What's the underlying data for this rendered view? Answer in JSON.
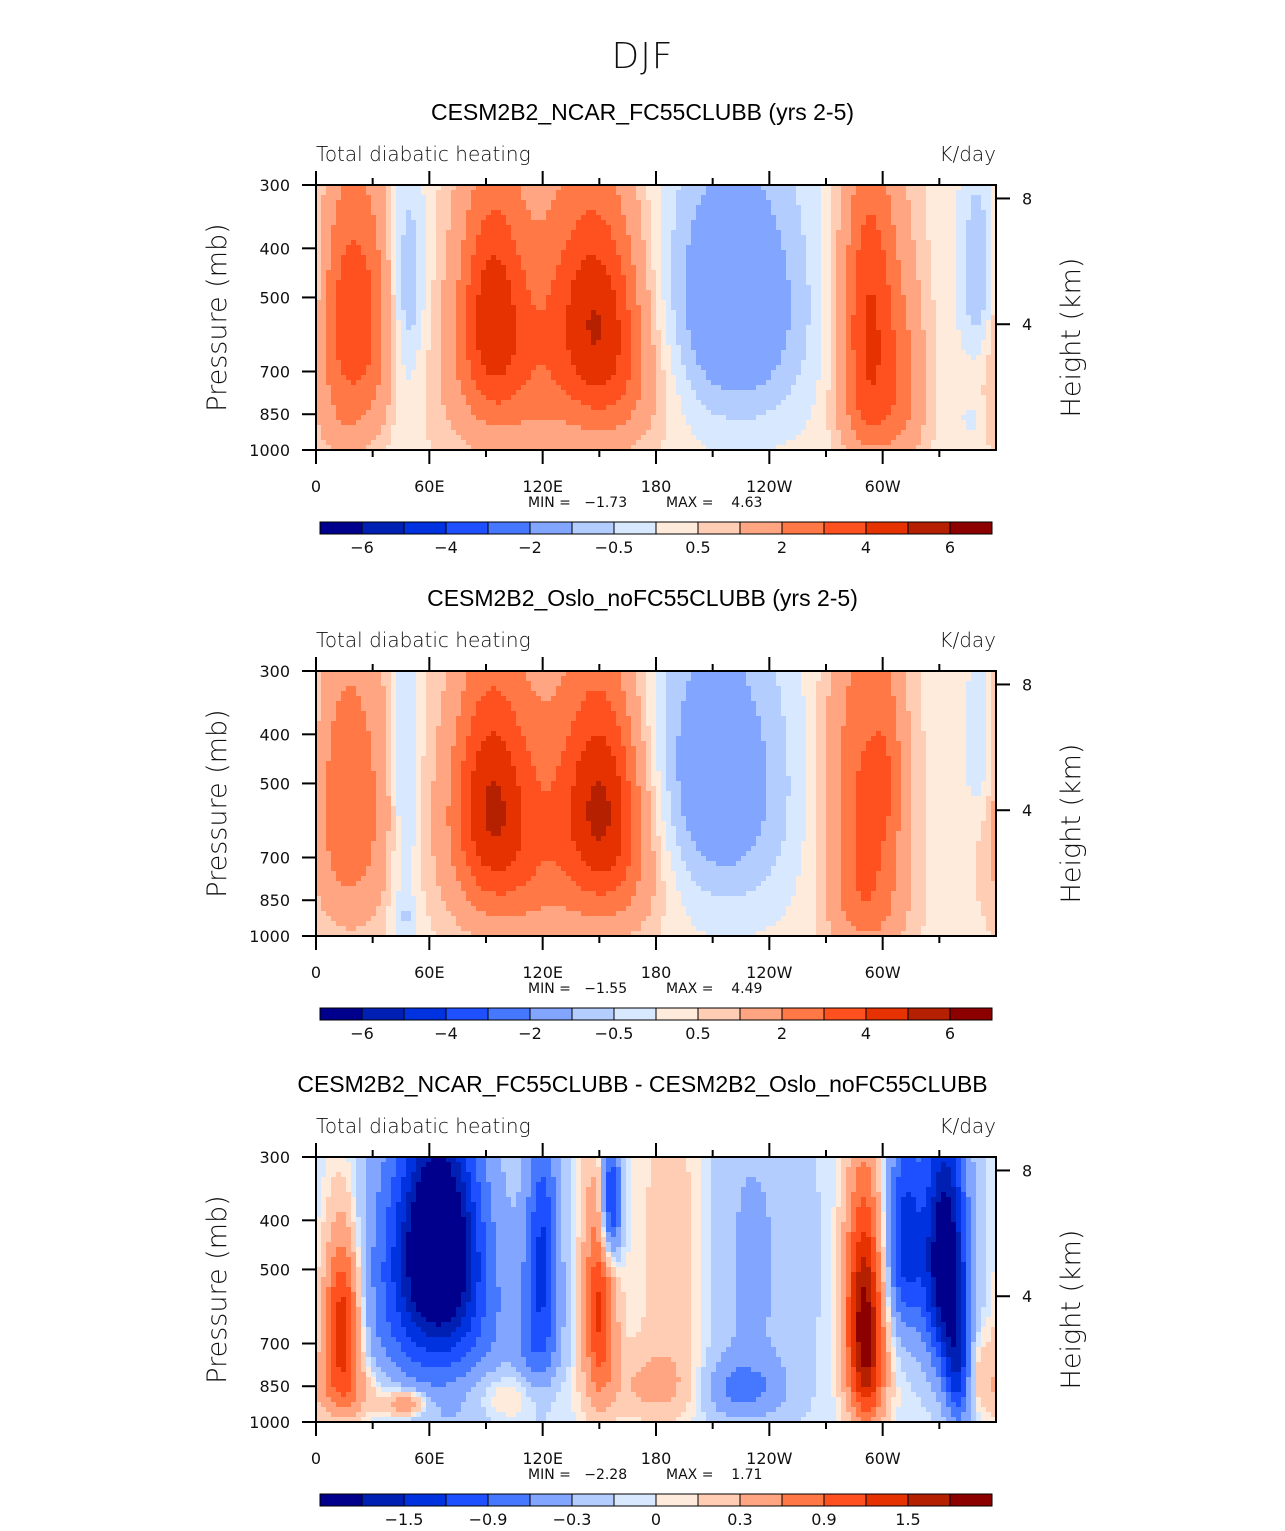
{
  "figure": {
    "suptitle": "DJF"
  },
  "chart_data": [
    {
      "type": "heatmap",
      "subtype": "filled-contour",
      "title": "CESM2B2_NCAR_FC55CLUBB (yrs 2-5)",
      "left_string": "Total diabatic heating",
      "right_string": "K/day",
      "ylabel": "Pressure (mb)",
      "ylabel_right": "Height (km)",
      "xticks": [
        "0",
        "60E",
        "120E",
        "180",
        "120W",
        "60W"
      ],
      "xtick_lon": [
        0,
        60,
        120,
        180,
        240,
        300
      ],
      "xlim_lon": [
        0,
        360
      ],
      "yticks": [
        "300",
        "400",
        "500",
        "700",
        "850",
        "1000"
      ],
      "ytick_p": [
        300,
        400,
        500,
        700,
        850,
        1000
      ],
      "ylim_p": [
        1000,
        300
      ],
      "yticks_right": [
        "8",
        "4"
      ],
      "ytick_right_km": [
        8,
        4
      ],
      "min_label": "MIN =   −1.73",
      "max_label": "MAX =    4.63",
      "min": -1.73,
      "max": 4.63,
      "colorbar": {
        "levels": [
          -6,
          -5,
          -4,
          -3,
          -2,
          -1,
          -0.5,
          0,
          0.5,
          1,
          2,
          3,
          4,
          5,
          6
        ],
        "labels": [
          "−6",
          "−4",
          "−2",
          "−0.5",
          "0.5",
          "2",
          "4",
          "6"
        ],
        "label_boundary_index": [
          0,
          2,
          4,
          6,
          8,
          10,
          12,
          14
        ]
      },
      "features": [
        {
          "lon": 20,
          "p": 560,
          "amp": 3.6,
          "wlon": 14,
          "wp": 230
        },
        {
          "lon": 13,
          "p": 900,
          "amp": 0.5,
          "wlon": 10,
          "wp": 80
        },
        {
          "lon": 48,
          "p": 470,
          "amp": -1.5,
          "wlon": 7,
          "wp": 170
        },
        {
          "lon": 47,
          "p": 850,
          "amp": -0.4,
          "wlon": 6,
          "wp": 200
        },
        {
          "lon": 93,
          "p": 520,
          "amp": 3.6,
          "wlon": 13,
          "wp": 200
        },
        {
          "lon": 100,
          "p": 750,
          "amp": 1.3,
          "wlon": 25,
          "wp": 200
        },
        {
          "lon": 150,
          "p": 530,
          "amp": 3.8,
          "wlon": 17,
          "wp": 190
        },
        {
          "lon": 160,
          "p": 780,
          "amp": 1.4,
          "wlon": 18,
          "wp": 160
        },
        {
          "lon": 127,
          "p": 540,
          "amp": 1.0,
          "wlon": 20,
          "wp": 300
        },
        {
          "lon": 225,
          "p": 540,
          "amp": -1.65,
          "wlon": 28,
          "wp": 260
        },
        {
          "lon": 210,
          "p": 470,
          "amp": -0.6,
          "wlon": 30,
          "wp": 200
        },
        {
          "lon": 293,
          "p": 520,
          "amp": 3.7,
          "wlon": 11,
          "wp": 230
        },
        {
          "lon": 295,
          "p": 850,
          "amp": 1.8,
          "wlon": 12,
          "wp": 150
        },
        {
          "lon": 313,
          "p": 720,
          "amp": 1.2,
          "wlon": 8,
          "wp": 230
        },
        {
          "lon": 352,
          "p": 450,
          "amp": -1.6,
          "wlon": 8,
          "wp": 150
        },
        {
          "lon": 348,
          "p": 870,
          "amp": -0.5,
          "wlon": 6,
          "wp": 50
        }
      ],
      "background": 0.3
    },
    {
      "type": "heatmap",
      "subtype": "filled-contour",
      "title": "CESM2B2_Oslo_noFC55CLUBB (yrs 2-5)",
      "left_string": "Total diabatic heating",
      "right_string": "K/day",
      "ylabel": "Pressure (mb)",
      "ylabel_right": "Height (km)",
      "xticks": [
        "0",
        "60E",
        "120E",
        "180",
        "120W",
        "60W"
      ],
      "xtick_lon": [
        0,
        60,
        120,
        180,
        240,
        300
      ],
      "xlim_lon": [
        0,
        360
      ],
      "yticks": [
        "300",
        "400",
        "500",
        "700",
        "850",
        "1000"
      ],
      "ytick_p": [
        300,
        400,
        500,
        700,
        850,
        1000
      ],
      "ylim_p": [
        1000,
        300
      ],
      "yticks_right": [
        "8",
        "4"
      ],
      "ytick_right_km": [
        8,
        4
      ],
      "min_label": "MIN =   −1.55",
      "max_label": "MAX =    4.49",
      "min": -1.55,
      "max": 4.49,
      "colorbar": {
        "levels": [
          -6,
          -5,
          -4,
          -3,
          -2,
          -1,
          -0.5,
          0,
          0.5,
          1,
          2,
          3,
          4,
          5,
          6
        ],
        "labels": [
          "−6",
          "−4",
          "−2",
          "−0.5",
          "0.5",
          "2",
          "4",
          "6"
        ],
        "label_boundary_index": [
          0,
          2,
          4,
          6,
          8,
          10,
          12,
          14
        ]
      },
      "features": [
        {
          "lon": 18,
          "p": 560,
          "amp": 2.7,
          "wlon": 14,
          "wp": 250
        },
        {
          "lon": 47,
          "p": 520,
          "amp": -1.1,
          "wlon": 5,
          "wp": 300
        },
        {
          "lon": 47,
          "p": 920,
          "amp": -0.6,
          "wlon": 5,
          "wp": 60
        },
        {
          "lon": 92,
          "p": 520,
          "amp": 3.8,
          "wlon": 15,
          "wp": 200
        },
        {
          "lon": 100,
          "p": 740,
          "amp": 1.5,
          "wlon": 22,
          "wp": 200
        },
        {
          "lon": 152,
          "p": 520,
          "amp": 3.8,
          "wlon": 15,
          "wp": 190
        },
        {
          "lon": 160,
          "p": 760,
          "amp": 1.5,
          "wlon": 18,
          "wp": 180
        },
        {
          "lon": 128,
          "p": 560,
          "amp": 1.2,
          "wlon": 20,
          "wp": 300
        },
        {
          "lon": 218,
          "p": 520,
          "amp": -1.5,
          "wlon": 28,
          "wp": 270
        },
        {
          "lon": 200,
          "p": 450,
          "amp": -0.6,
          "wlon": 25,
          "wp": 200
        },
        {
          "lon": 290,
          "p": 520,
          "amp": 2.8,
          "wlon": 14,
          "wp": 260
        },
        {
          "lon": 303,
          "p": 480,
          "amp": 1.0,
          "wlon": 6,
          "wp": 150
        },
        {
          "lon": 292,
          "p": 880,
          "amp": 1.5,
          "wlon": 14,
          "wp": 150
        },
        {
          "lon": 352,
          "p": 420,
          "amp": -1.1,
          "wlon": 6,
          "wp": 120
        }
      ],
      "background": 0.3
    },
    {
      "type": "heatmap",
      "subtype": "filled-contour",
      "title": "CESM2B2_NCAR_FC55CLUBB - CESM2B2_Oslo_noFC55CLUBB",
      "left_string": "Total diabatic heating",
      "right_string": "K/day",
      "ylabel": "Pressure (mb)",
      "ylabel_right": "Height (km)",
      "xticks": [
        "0",
        "60E",
        "120E",
        "180",
        "120W",
        "60W"
      ],
      "xtick_lon": [
        0,
        60,
        120,
        180,
        240,
        300
      ],
      "xlim_lon": [
        0,
        360
      ],
      "yticks": [
        "300",
        "400",
        "500",
        "700",
        "850",
        "1000"
      ],
      "ytick_p": [
        300,
        400,
        500,
        700,
        850,
        1000
      ],
      "ylim_p": [
        1000,
        300
      ],
      "yticks_right": [
        "8",
        "4"
      ],
      "ytick_right_km": [
        8,
        4
      ],
      "min_label": "MIN =   −2.28",
      "max_label": "MAX =    1.71",
      "min": -2.28,
      "max": 1.71,
      "colorbar": {
        "levels": [
          -1.8,
          -1.5,
          -1.2,
          -0.9,
          -0.6,
          -0.3,
          -0.1,
          0,
          0.1,
          0.3,
          0.6,
          0.9,
          1.2,
          1.5,
          1.8
        ],
        "labels": [
          "−1.5",
          "−0.9",
          "−0.3",
          "0",
          "0.3",
          "0.9",
          "1.5"
        ],
        "label_boundary_index": [
          1,
          3,
          5,
          7,
          9,
          11,
          13
        ]
      },
      "features": [
        {
          "lon": 14,
          "p": 640,
          "amp": 1.6,
          "wlon": 7,
          "wp": 170
        },
        {
          "lon": 18,
          "p": 870,
          "amp": 0.5,
          "wlon": 16,
          "wp": 90
        },
        {
          "lon": 48,
          "p": 920,
          "amp": 0.8,
          "wlon": 8,
          "wp": 40
        },
        {
          "lon": 65,
          "p": 440,
          "amp": -2.0,
          "wlon": 14,
          "wp": 160
        },
        {
          "lon": 45,
          "p": 560,
          "amp": -0.7,
          "wlon": 20,
          "wp": 250
        },
        {
          "lon": 80,
          "p": 650,
          "amp": -0.6,
          "wlon": 20,
          "wp": 250
        },
        {
          "lon": 120,
          "p": 430,
          "amp": -1.0,
          "wlon": 6,
          "wp": 150
        },
        {
          "lon": 118,
          "p": 700,
          "amp": -0.7,
          "wlon": 8,
          "wp": 150
        },
        {
          "lon": 150,
          "p": 600,
          "amp": 1.3,
          "wlon": 6,
          "wp": 200
        },
        {
          "lon": 156,
          "p": 370,
          "amp": -1.5,
          "wlon": 4,
          "wp": 80
        },
        {
          "lon": 100,
          "p": 880,
          "amp": 0.4,
          "wlon": 18,
          "wp": 80
        },
        {
          "lon": 190,
          "p": 480,
          "amp": 0.3,
          "wlon": 14,
          "wp": 250
        },
        {
          "lon": 180,
          "p": 850,
          "amp": 0.4,
          "wlon": 18,
          "wp": 100
        },
        {
          "lon": 230,
          "p": 500,
          "amp": -0.3,
          "wlon": 20,
          "wp": 300
        },
        {
          "lon": 225,
          "p": 860,
          "amp": -0.6,
          "wlon": 15,
          "wp": 80
        },
        {
          "lon": 290,
          "p": 580,
          "amp": 1.7,
          "wlon": 7,
          "wp": 200
        },
        {
          "lon": 292,
          "p": 820,
          "amp": 0.9,
          "wlon": 7,
          "wp": 160
        },
        {
          "lon": 333,
          "p": 480,
          "amp": -2.2,
          "wlon": 8,
          "wp": 190
        },
        {
          "lon": 312,
          "p": 440,
          "amp": -1.3,
          "wlon": 7,
          "wp": 150
        },
        {
          "lon": 340,
          "p": 800,
          "amp": -1.2,
          "wlon": 5,
          "wp": 150
        },
        {
          "lon": 350,
          "p": 780,
          "amp": 0.3,
          "wlon": 6,
          "wp": 100
        }
      ],
      "background": -0.05
    }
  ],
  "colorbar_colors": [
    "#00008c",
    "#0020b4",
    "#0032e0",
    "#1e50ff",
    "#4678ff",
    "#82a5ff",
    "#b4cdff",
    "#d7e8ff",
    "#ffebdc",
    "#ffcdb4",
    "#ffa582",
    "#ff7846",
    "#ff5020",
    "#e63200",
    "#b42000",
    "#8c0000"
  ]
}
